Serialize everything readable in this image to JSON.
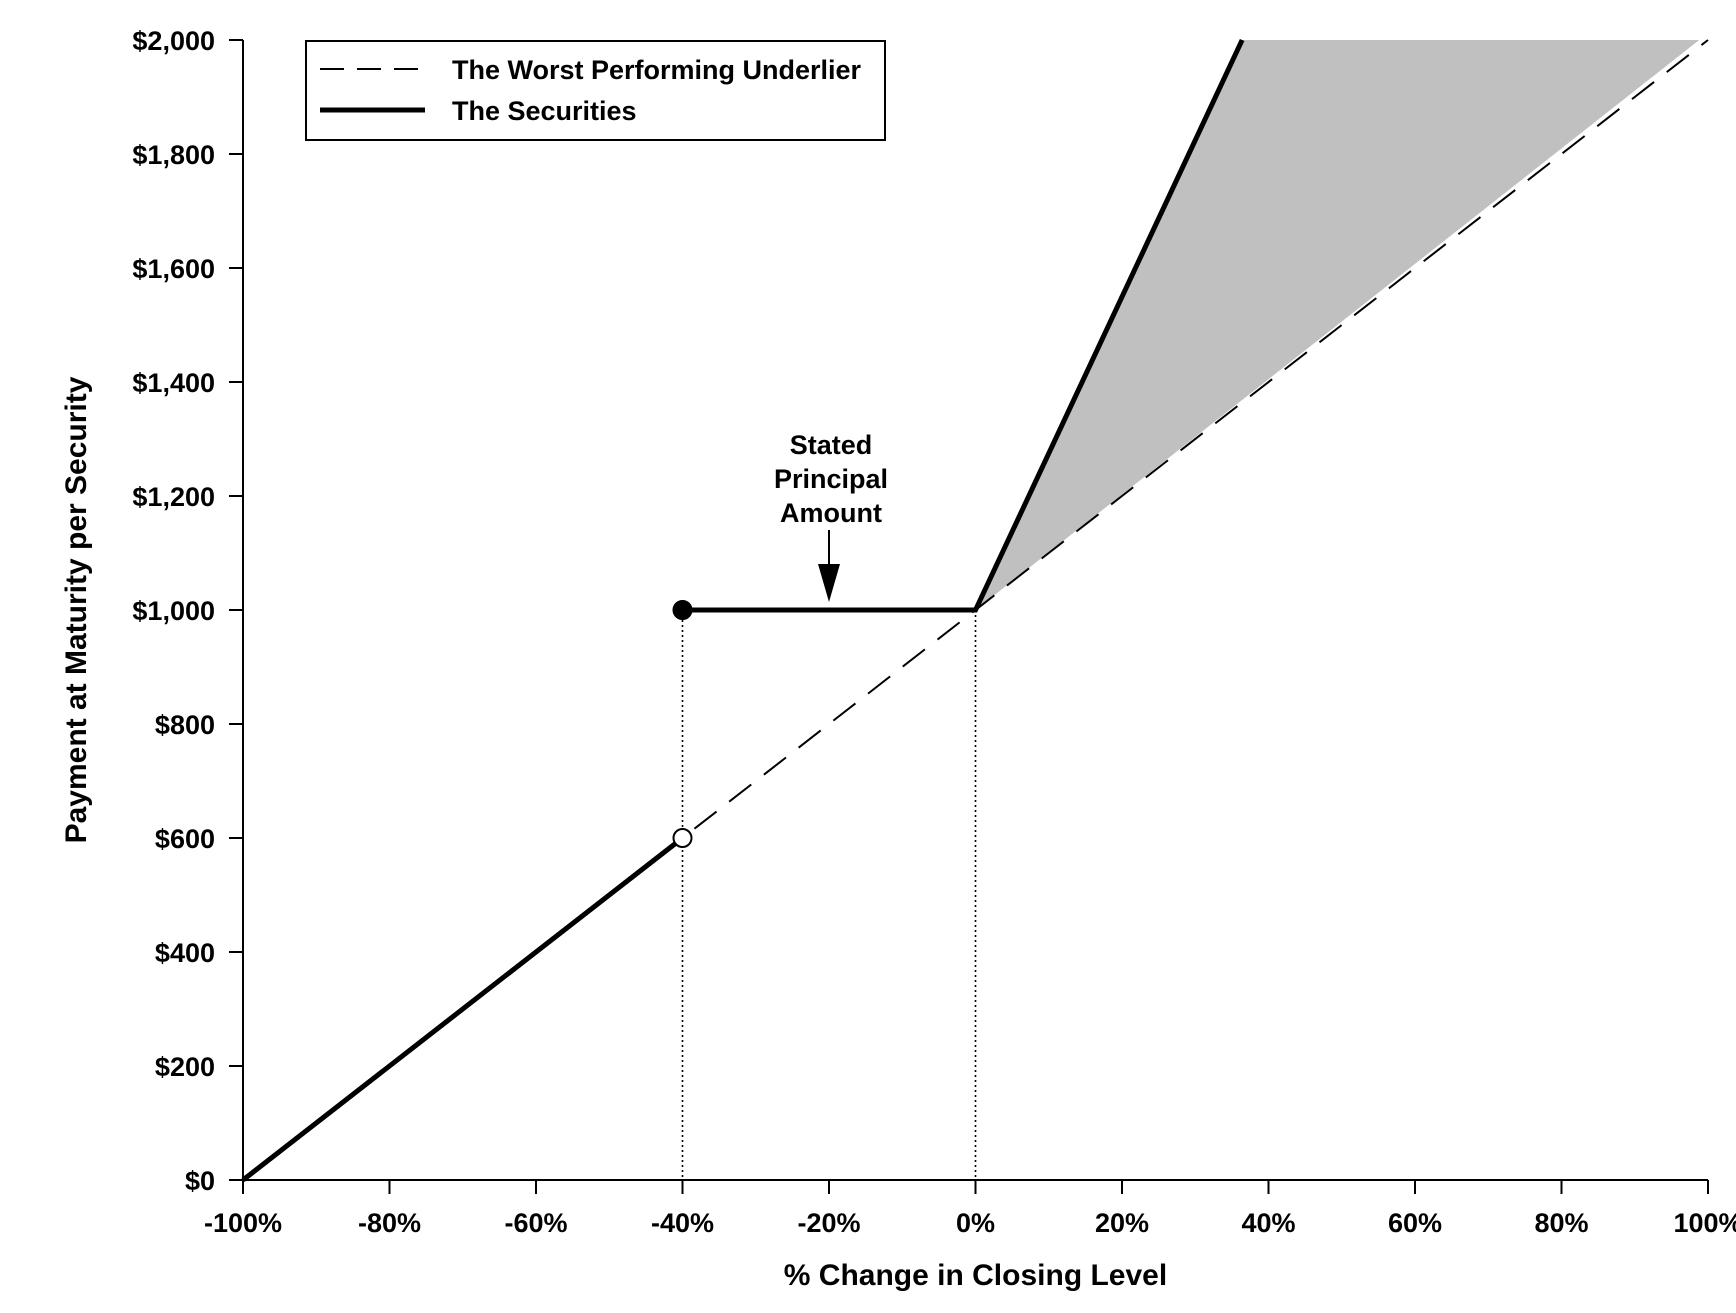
{
  "chart_data": {
    "type": "line",
    "xlabel": "% Change in Closing Level",
    "ylabel": "Payment at Maturity per Security",
    "xlim": [
      -100,
      100
    ],
    "ylim": [
      0,
      2000
    ],
    "x_ticks": [
      -100,
      -80,
      -60,
      -40,
      -20,
      0,
      20,
      40,
      60,
      80,
      100
    ],
    "x_tick_labels": [
      "-100%",
      "-80%",
      "-60%",
      "-40%",
      "-20%",
      "0%",
      "20%",
      "40%",
      "60%",
      "80%",
      "100%"
    ],
    "y_ticks": [
      0,
      200,
      400,
      600,
      800,
      1000,
      1200,
      1400,
      1600,
      1800,
      2000
    ],
    "y_tick_labels": [
      "$0",
      "$200",
      "$400",
      "$600",
      "$800",
      "$1,000",
      "$1,200",
      "$1,400",
      "$1,600",
      "$1,800",
      "$2,000"
    ],
    "grid": false,
    "legend_position": "top-left",
    "series": [
      {
        "name": "The Worst Performing Underlier",
        "style": "dashed",
        "color": "#000000",
        "points": [
          [
            -100,
            0
          ],
          [
            100,
            2000
          ]
        ]
      },
      {
        "name": "The Securities",
        "style": "solid",
        "color": "#000000",
        "segments": [
          [
            [
              -100,
              0
            ],
            [
              -40,
              600
            ]
          ],
          [
            [
              -40,
              1000
            ],
            [
              0,
              1000
            ],
            [
              36.4,
              2000
            ]
          ]
        ]
      }
    ],
    "shaded_region": {
      "color": "#c0c0c0",
      "points": [
        [
          0,
          1000
        ],
        [
          36.4,
          2000
        ],
        [
          98.8,
          2000
        ]
      ]
    },
    "markers": [
      {
        "x": -40,
        "y": 1000,
        "fill": "filled"
      },
      {
        "x": -40,
        "y": 600,
        "fill": "open"
      }
    ],
    "reference_lines": [
      {
        "x": -40,
        "y_top": 1000,
        "style": "dotted"
      },
      {
        "x": 0,
        "y_top": 1000,
        "style": "dotted"
      }
    ],
    "annotation": {
      "lines": [
        "Stated",
        "Principal",
        "Amount"
      ],
      "x": -20,
      "y": 1000
    }
  }
}
